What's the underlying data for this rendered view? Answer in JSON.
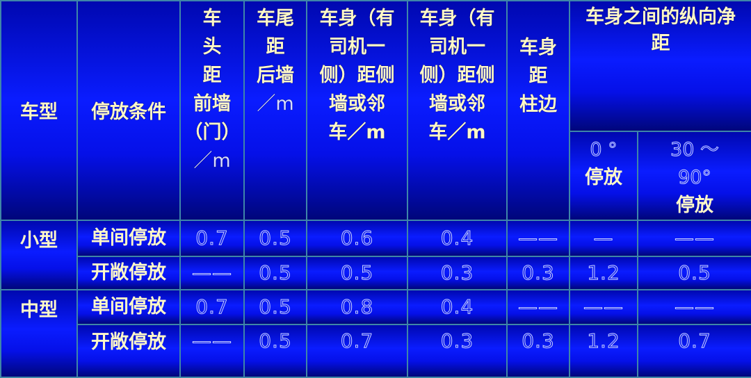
{
  "headers": {
    "car_type": "车型",
    "condition": "停放条件",
    "front_wall": [
      "车",
      "头",
      "距",
      "前墙",
      "（门）"
    ],
    "front_wall_unit": "／m",
    "rear_wall": [
      "车尾",
      "距",
      "后墙"
    ],
    "rear_wall_unit": "／m",
    "side_driver": [
      "车身（有",
      "司机一",
      "侧）距侧",
      "墙或邻"
    ],
    "side_driver_unit": "车／m",
    "side_other": [
      "车身（有",
      "司机一",
      "侧）距侧",
      "墙或邻"
    ],
    "side_other_unit": "车／m",
    "column": [
      "车身",
      "距",
      "柱边"
    ],
    "between": [
      "车身之间的纵向净",
      "距"
    ],
    "between_0_num": "0 °",
    "between_0_label": "停放",
    "between_30_num": "30 ～",
    "between_30_num2": "90°",
    "between_30_label": "停放"
  },
  "rows": [
    {
      "type": "小型",
      "condition": "单间停放",
      "values": [
        "0.7",
        "0.5",
        "0.6",
        "0.4",
        "——",
        "—",
        "——"
      ]
    },
    {
      "type": "",
      "condition": "开敞停放",
      "values": [
        "——",
        "0.5",
        "0.5",
        "0.3",
        "0.3",
        "1.2",
        "0.5"
      ]
    },
    {
      "type": "中型",
      "condition": "单间停放",
      "values": [
        "0.7",
        "0.5",
        "0.8",
        "0.4",
        "——",
        "——",
        "——"
      ]
    },
    {
      "type": "",
      "condition": "开敞停放",
      "values": [
        "——",
        "0.5",
        "0.7",
        "0.3",
        "0.3",
        "1.2",
        "0.7"
      ]
    }
  ]
}
